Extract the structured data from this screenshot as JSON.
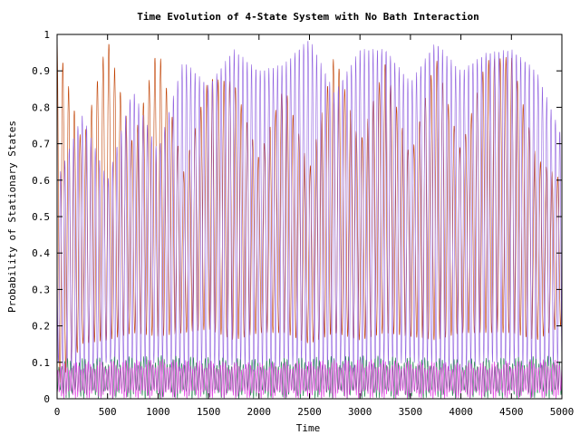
{
  "chart_data": {
    "type": "line",
    "title": "Time Evolution of 4-State System with No Bath Interaction",
    "xlabel": "Time",
    "ylabel": "Probability of Stationary States",
    "xlim": [
      0,
      5000
    ],
    "ylim": [
      0,
      1
    ],
    "x_ticks": [
      "0",
      "500",
      "1000",
      "1500",
      "2000",
      "2500",
      "3000",
      "3500",
      "4000",
      "4500",
      "5000"
    ],
    "y_ticks": [
      "0",
      "0.1",
      "0.2",
      "0.3",
      "0.4",
      "0.5",
      "0.6",
      "0.7",
      "0.8",
      "0.9",
      "1"
    ],
    "grid": false,
    "legend": "none",
    "series": [
      {
        "color": "#c04000",
        "oscillation_period": 57,
        "x": [
          0,
          250,
          500,
          750,
          1000,
          1250,
          1500,
          1750,
          2000,
          2250,
          2500,
          2750,
          3000,
          3250,
          3500,
          3750,
          4000,
          4250,
          4500,
          4750,
          5000
        ],
        "high": [
          0.99,
          0.7,
          0.99,
          0.7,
          0.97,
          0.62,
          0.88,
          0.87,
          0.66,
          0.86,
          0.63,
          0.95,
          0.7,
          0.92,
          0.66,
          0.94,
          0.68,
          0.93,
          0.94,
          0.66,
          0.6
        ],
        "low": [
          0.03,
          0.15,
          0.16,
          0.18,
          0.17,
          0.18,
          0.19,
          0.16,
          0.18,
          0.18,
          0.15,
          0.18,
          0.16,
          0.18,
          0.17,
          0.16,
          0.18,
          0.18,
          0.18,
          0.16,
          0.2
        ]
      },
      {
        "color": "#9060e0",
        "oscillation_period": 43,
        "x": [
          0,
          250,
          500,
          750,
          1000,
          1250,
          1500,
          1750,
          2000,
          2250,
          2500,
          2750,
          3000,
          3250,
          3500,
          3750,
          4000,
          4250,
          4500,
          4750,
          5000
        ],
        "high": [
          0.6,
          0.78,
          0.6,
          0.85,
          0.68,
          0.93,
          0.86,
          0.96,
          0.9,
          0.92,
          0.99,
          0.84,
          0.96,
          0.96,
          0.87,
          0.98,
          0.9,
          0.95,
          0.96,
          0.9,
          0.72
        ],
        "low": [
          0.1,
          0.06,
          0.1,
          0.07,
          0.1,
          0.07,
          0.08,
          0.09,
          0.07,
          0.09,
          0.08,
          0.08,
          0.07,
          0.09,
          0.1,
          0.08,
          0.07,
          0.1,
          0.09,
          0.08,
          0.1
        ]
      },
      {
        "color": "#2e8b57",
        "oscillation_period": 29,
        "x": [
          0,
          1000,
          2000,
          3000,
          4000,
          5000
        ],
        "high": [
          0.11,
          0.12,
          0.11,
          0.12,
          0.11,
          0.12
        ],
        "low": [
          0.0,
          0.0,
          0.0,
          0.0,
          0.0,
          0.0
        ]
      },
      {
        "color": "#e040e0",
        "oscillation_period": 23,
        "x": [
          0,
          1000,
          2000,
          3000,
          4000,
          5000
        ],
        "high": [
          0.1,
          0.11,
          0.1,
          0.11,
          0.1,
          0.11
        ],
        "low": [
          0.0,
          0.0,
          0.0,
          0.0,
          0.0,
          0.0
        ]
      }
    ]
  }
}
